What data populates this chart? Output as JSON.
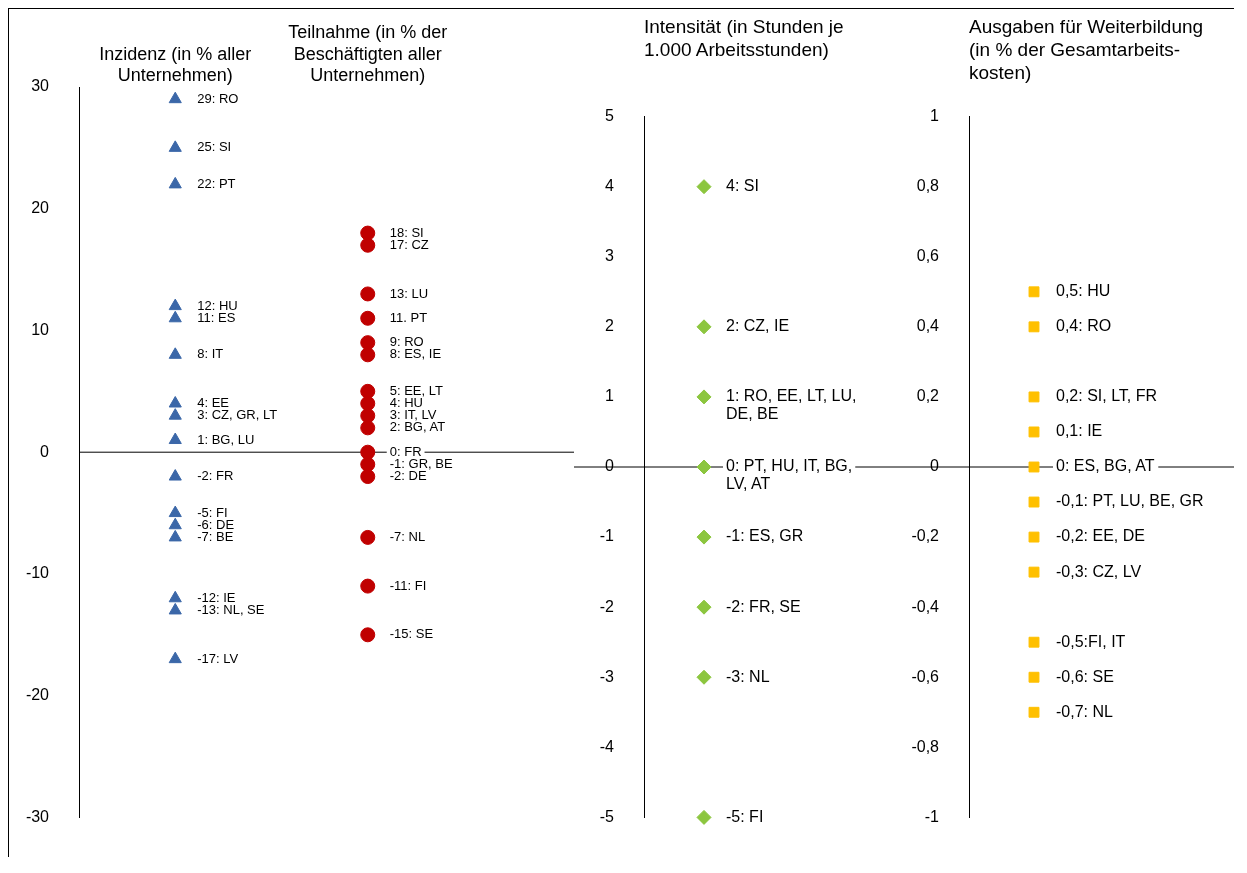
{
  "chart_data": [
    {
      "type": "scatter",
      "categories": [
        "Inzidenz (in % aller Unternehmen)",
        "Teilnahme (in % der Beschäftigten aller Unternehmen)"
      ],
      "ylim": [
        -30,
        30
      ],
      "yticks": [
        -30,
        -20,
        -10,
        0,
        10,
        20,
        30
      ],
      "series": [
        {
          "color": "#3b67a8",
          "marker": "triangle",
          "values": [
            29,
            null
          ],
          "value_labels": [
            "29: RO",
            null
          ]
        },
        {
          "color": "#3b67a8",
          "marker": "triangle",
          "values": [
            25,
            null
          ],
          "value_labels": [
            "25: SI",
            null
          ]
        },
        {
          "color": "#3b67a8",
          "marker": "triangle",
          "values": [
            22,
            null
          ],
          "value_labels": [
            "22: PT",
            null
          ]
        },
        {
          "color": "#3b67a8",
          "marker": "triangle",
          "values": [
            12,
            null
          ],
          "value_labels": [
            "12: HU",
            null
          ]
        },
        {
          "color": "#3b67a8",
          "marker": "triangle",
          "values": [
            11,
            null
          ],
          "value_labels": [
            "11: ES",
            null
          ]
        },
        {
          "color": "#3b67a8",
          "marker": "triangle",
          "values": [
            8,
            null
          ],
          "value_labels": [
            "8: IT",
            null
          ]
        },
        {
          "color": "#3b67a8",
          "marker": "triangle",
          "values": [
            4,
            null
          ],
          "value_labels": [
            "4: EE",
            null
          ]
        },
        {
          "color": "#3b67a8",
          "marker": "triangle",
          "values": [
            3,
            null
          ],
          "value_labels": [
            "3: CZ, GR, LT",
            null
          ]
        },
        {
          "color": "#3b67a8",
          "marker": "triangle",
          "values": [
            1,
            null
          ],
          "value_labels": [
            "1: BG, LU",
            null
          ]
        },
        {
          "color": "#3b67a8",
          "marker": "triangle",
          "values": [
            -2,
            null
          ],
          "value_labels": [
            "-2: FR",
            null
          ]
        },
        {
          "color": "#3b67a8",
          "marker": "triangle",
          "values": [
            -5,
            null
          ],
          "value_labels": [
            "-5: FI",
            null
          ]
        },
        {
          "color": "#3b67a8",
          "marker": "triangle",
          "values": [
            -6,
            null
          ],
          "value_labels": [
            "-6: DE",
            null
          ]
        },
        {
          "color": "#3b67a8",
          "marker": "triangle",
          "values": [
            -7,
            null
          ],
          "value_labels": [
            "-7: BE",
            null
          ]
        },
        {
          "color": "#3b67a8",
          "marker": "triangle",
          "values": [
            -12,
            null
          ],
          "value_labels": [
            "-12: IE",
            null
          ]
        },
        {
          "color": "#3b67a8",
          "marker": "triangle",
          "values": [
            -13,
            null
          ],
          "value_labels": [
            "-13: NL, SE",
            null
          ]
        },
        {
          "color": "#3b67a8",
          "marker": "triangle",
          "values": [
            -17,
            null
          ],
          "value_labels": [
            "-17: LV",
            null
          ]
        },
        {
          "color": "#c00000",
          "marker": "circle",
          "values": [
            null,
            18
          ],
          "value_labels": [
            null,
            "18: SI"
          ]
        },
        {
          "color": "#c00000",
          "marker": "circle",
          "values": [
            null,
            17
          ],
          "value_labels": [
            null,
            "17: CZ"
          ]
        },
        {
          "color": "#c00000",
          "marker": "circle",
          "values": [
            null,
            13
          ],
          "value_labels": [
            null,
            "13: LU"
          ]
        },
        {
          "color": "#c00000",
          "marker": "circle",
          "values": [
            null,
            11
          ],
          "value_labels": [
            null,
            "11. PT"
          ]
        },
        {
          "color": "#c00000",
          "marker": "circle",
          "values": [
            null,
            9
          ],
          "value_labels": [
            null,
            "9: RO"
          ]
        },
        {
          "color": "#c00000",
          "marker": "circle",
          "values": [
            null,
            8
          ],
          "value_labels": [
            null,
            "8: ES, IE"
          ]
        },
        {
          "color": "#c00000",
          "marker": "circle",
          "values": [
            null,
            5
          ],
          "value_labels": [
            null,
            "5: EE, LT"
          ]
        },
        {
          "color": "#c00000",
          "marker": "circle",
          "values": [
            null,
            4
          ],
          "value_labels": [
            null,
            "4: HU"
          ]
        },
        {
          "color": "#c00000",
          "marker": "circle",
          "values": [
            null,
            3
          ],
          "value_labels": [
            null,
            "3: IT, LV"
          ]
        },
        {
          "color": "#c00000",
          "marker": "circle",
          "values": [
            null,
            2
          ],
          "value_labels": [
            null,
            "2: BG, AT"
          ]
        },
        {
          "color": "#c00000",
          "marker": "circle",
          "values": [
            null,
            0
          ],
          "value_labels": [
            null,
            "0: FR"
          ]
        },
        {
          "color": "#c00000",
          "marker": "circle",
          "values": [
            null,
            -1
          ],
          "value_labels": [
            null,
            "-1: GR, BE"
          ]
        },
        {
          "color": "#c00000",
          "marker": "circle",
          "values": [
            null,
            -2
          ],
          "value_labels": [
            null,
            "-2: DE"
          ]
        },
        {
          "color": "#c00000",
          "marker": "circle",
          "values": [
            null,
            -7
          ],
          "value_labels": [
            null,
            "-7: NL"
          ]
        },
        {
          "color": "#c00000",
          "marker": "circle",
          "values": [
            null,
            -11
          ],
          "value_labels": [
            null,
            "-11: FI"
          ]
        },
        {
          "color": "#c00000",
          "marker": "circle",
          "values": [
            null,
            -15
          ],
          "value_labels": [
            null,
            "-15: SE"
          ]
        }
      ]
    },
    {
      "type": "scatter",
      "title": "Intensität (in Stunden je 1.000 Arbeitsstunden)",
      "categories": [
        null
      ],
      "tick_labels": "y",
      "marker": "diamond",
      "ylim": [
        -5,
        5
      ],
      "yticks": [
        -5,
        -4,
        -3,
        -2,
        -1,
        0,
        1,
        2,
        3,
        4,
        5
      ],
      "series": [
        {
          "color": "#8cc63f",
          "values": [
            4
          ],
          "value_labels": [
            "4: SI"
          ]
        },
        {
          "color": "#8cc63f",
          "values": [
            2
          ],
          "value_labels": [
            "2: CZ, IE"
          ]
        },
        {
          "color": "#8cc63f",
          "values": [
            1
          ],
          "value_labels": [
            "1: RO, EE, LT, LU, DE, BE"
          ]
        },
        {
          "color": "#8cc63f",
          "values": [
            0
          ],
          "value_labels": [
            "0: PT, HU, IT, BG, LV, AT"
          ]
        },
        {
          "color": "#8cc63f",
          "values": [
            -1
          ],
          "value_labels": [
            "-1: ES, GR"
          ]
        },
        {
          "color": "#8cc63f",
          "values": [
            -2
          ],
          "value_labels": [
            "-2: FR, SE"
          ]
        },
        {
          "color": "#8cc63f",
          "values": [
            -3
          ],
          "value_labels": [
            "-3: NL"
          ]
        },
        {
          "color": "#8cc63f",
          "values": [
            -5
          ],
          "value_labels": [
            "-5: FI"
          ]
        }
      ]
    },
    {
      "type": "scatter",
      "title": "Ausgaben für Weiterbildung (in % der Gesamtarbeits-kosten)",
      "categories": [
        null
      ],
      "tick_labels": "y",
      "marker": "square",
      "ylim": [
        -1,
        1
      ],
      "yticks": [
        {
          "value": -1,
          "label": "-1"
        },
        {
          "value": -0.8,
          "label": "-0,8"
        },
        {
          "value": -0.6,
          "label": "-0,6"
        },
        {
          "value": -0.4,
          "label": "-0,4"
        },
        {
          "value": -0.2,
          "label": "-0,2"
        },
        {
          "value": 0,
          "label": "0"
        },
        {
          "value": 0.2,
          "label": "0,2"
        },
        {
          "value": 0.4,
          "label": "0,4"
        },
        {
          "value": 0.6,
          "label": "0,6"
        },
        {
          "value": 0.8,
          "label": "0,8"
        },
        {
          "value": 1,
          "label": "1"
        }
      ],
      "series": [
        {
          "color": "#ffc000",
          "values": [
            0.5
          ],
          "value_labels": [
            "0,5: HU"
          ]
        },
        {
          "color": "#ffc000",
          "values": [
            0.4
          ],
          "value_labels": [
            "0,4: RO"
          ]
        },
        {
          "color": "#ffc000",
          "values": [
            0.2
          ],
          "value_labels": [
            "0,2: SI, LT, FR"
          ]
        },
        {
          "color": "#ffc000",
          "values": [
            0.1
          ],
          "value_labels": [
            "0,1: IE"
          ]
        },
        {
          "color": "#ffc000",
          "values": [
            0
          ],
          "value_labels": [
            "0: ES, BG, AT"
          ]
        },
        {
          "color": "#ffc000",
          "values": [
            -0.1
          ],
          "value_labels": [
            "-0,1: PT, LU, BE, GR"
          ]
        },
        {
          "color": "#ffc000",
          "values": [
            -0.2
          ],
          "value_labels": [
            "-0,2: EE, DE"
          ]
        },
        {
          "color": "#ffc000",
          "values": [
            -0.3
          ],
          "value_labels": [
            "-0,3: CZ, LV"
          ]
        },
        {
          "color": "#ffc000",
          "values": [
            -0.5
          ],
          "value_labels": [
            "-0,5:FI, IT"
          ]
        },
        {
          "color": "#ffc000",
          "values": [
            -0.6
          ],
          "value_labels": [
            "-0,6: SE"
          ]
        },
        {
          "color": "#ffc000",
          "values": [
            -0.7
          ],
          "value_labels": [
            "-0,7: NL"
          ]
        }
      ]
    }
  ]
}
